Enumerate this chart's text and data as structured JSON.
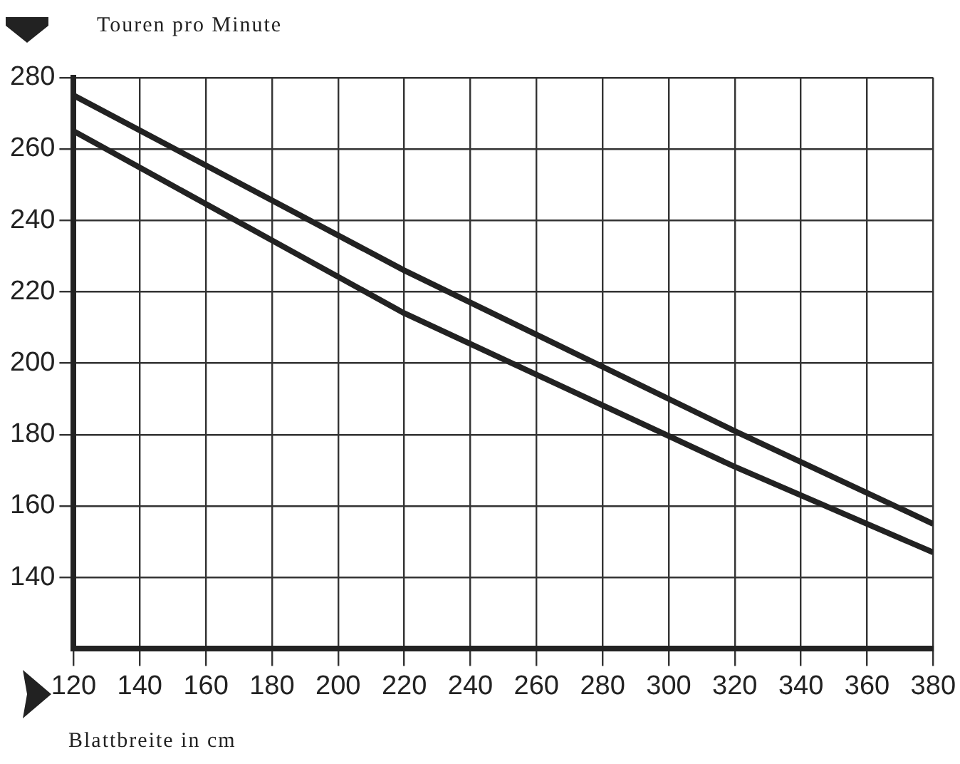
{
  "chart_data": {
    "type": "line",
    "xlabel": "Blattbreite in cm",
    "ylabel": "Touren pro Minute",
    "xlim": [
      120,
      380
    ],
    "xticks": [
      120,
      140,
      160,
      180,
      200,
      220,
      240,
      260,
      280,
      300,
      320,
      340,
      360,
      380
    ],
    "ylim": [
      120,
      280
    ],
    "yticks": [
      140,
      160,
      180,
      200,
      220,
      240,
      260,
      280
    ],
    "grid": true,
    "marker": "none",
    "line_style": "solid",
    "series": [
      {
        "color": "#222222",
        "x": [
          120,
          220,
          320,
          380
        ],
        "values": [
          275,
          226,
          181,
          155
        ]
      },
      {
        "color": "#222222",
        "x": [
          120,
          220,
          320,
          380
        ],
        "values": [
          265,
          214,
          171,
          147
        ]
      }
    ]
  }
}
